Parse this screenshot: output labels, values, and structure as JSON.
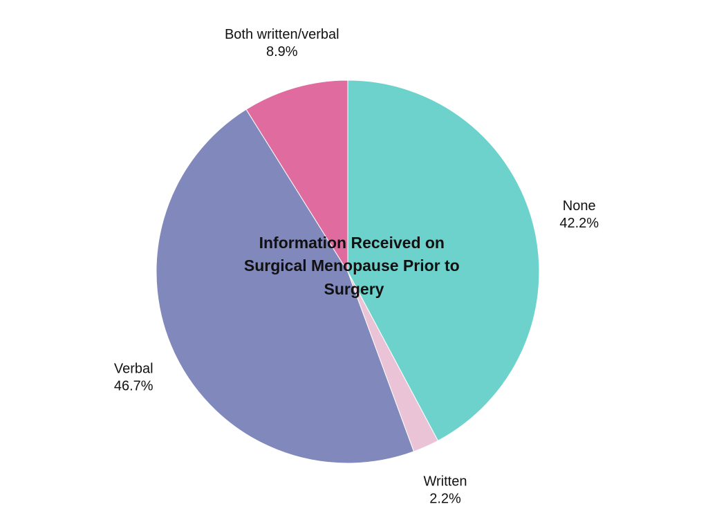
{
  "chart_data": {
    "type": "pie",
    "title": "Information Received on Surgical Menopause Prior to Surgery",
    "title_lines": [
      "Information Received on",
      "Surgical Menopause Prior to",
      "Surgery"
    ],
    "slices": [
      {
        "label": "None",
        "value": 42.2,
        "value_label": "42.2%",
        "color": "#6dd2cb"
      },
      {
        "label": "Written",
        "value": 2.2,
        "value_label": "2.2%",
        "color": "#ebc3d6"
      },
      {
        "label": "Verbal",
        "value": 46.7,
        "value_label": "46.7%",
        "color": "#8088bc"
      },
      {
        "label": "Both written/verbal",
        "value": 8.9,
        "value_label": "8.9%",
        "color": "#e06b9f"
      }
    ],
    "start": "12 o'clock",
    "direction": "clockwise",
    "legend": "none"
  }
}
